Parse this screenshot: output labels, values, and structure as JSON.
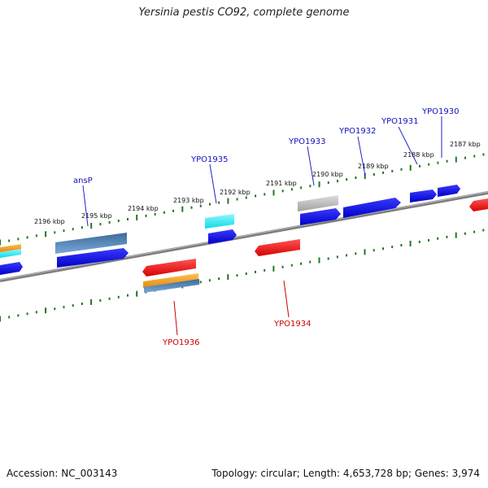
{
  "title": "Yersinia pestis CO92, complete genome",
  "footer": {
    "accession": "Accession: NC_003143",
    "summary": "Topology: circular; Length: 4,653,728 bp; Genes: 3,974"
  },
  "colors": {
    "forward_gene": "#1010ee",
    "reverse_gene": "#ee1111",
    "orange_gene": "#f0a020",
    "cyan_gene": "#22e8ee",
    "steel_gene": "#4a7fb0",
    "grey_gene": "#b8b8b8",
    "backbone": "#888888",
    "tick": "#227722",
    "label_forward": "#1010bb",
    "label_reverse": "#cc0000"
  },
  "ticks": [
    {
      "label": "2196 kbp"
    },
    {
      "label": "2195 kbp"
    },
    {
      "label": "2194 kbp"
    },
    {
      "label": "2193 kbp"
    },
    {
      "label": "2192 kbp"
    },
    {
      "label": "2191 kbp"
    },
    {
      "label": "2190 kbp"
    },
    {
      "label": "2189 kbp"
    },
    {
      "label": "2188 kbp"
    },
    {
      "label": "2187 kbp"
    }
  ],
  "gene_labels": {
    "ansP": "ansP",
    "YPO1935": "YPO1935",
    "YPO1933": "YPO1933",
    "YPO1932": "YPO1932",
    "YPO1931": "YPO1931",
    "YPO1930": "YPO1930",
    "YPO1936": "YPO1936",
    "YPO1934": "YPO1934"
  }
}
